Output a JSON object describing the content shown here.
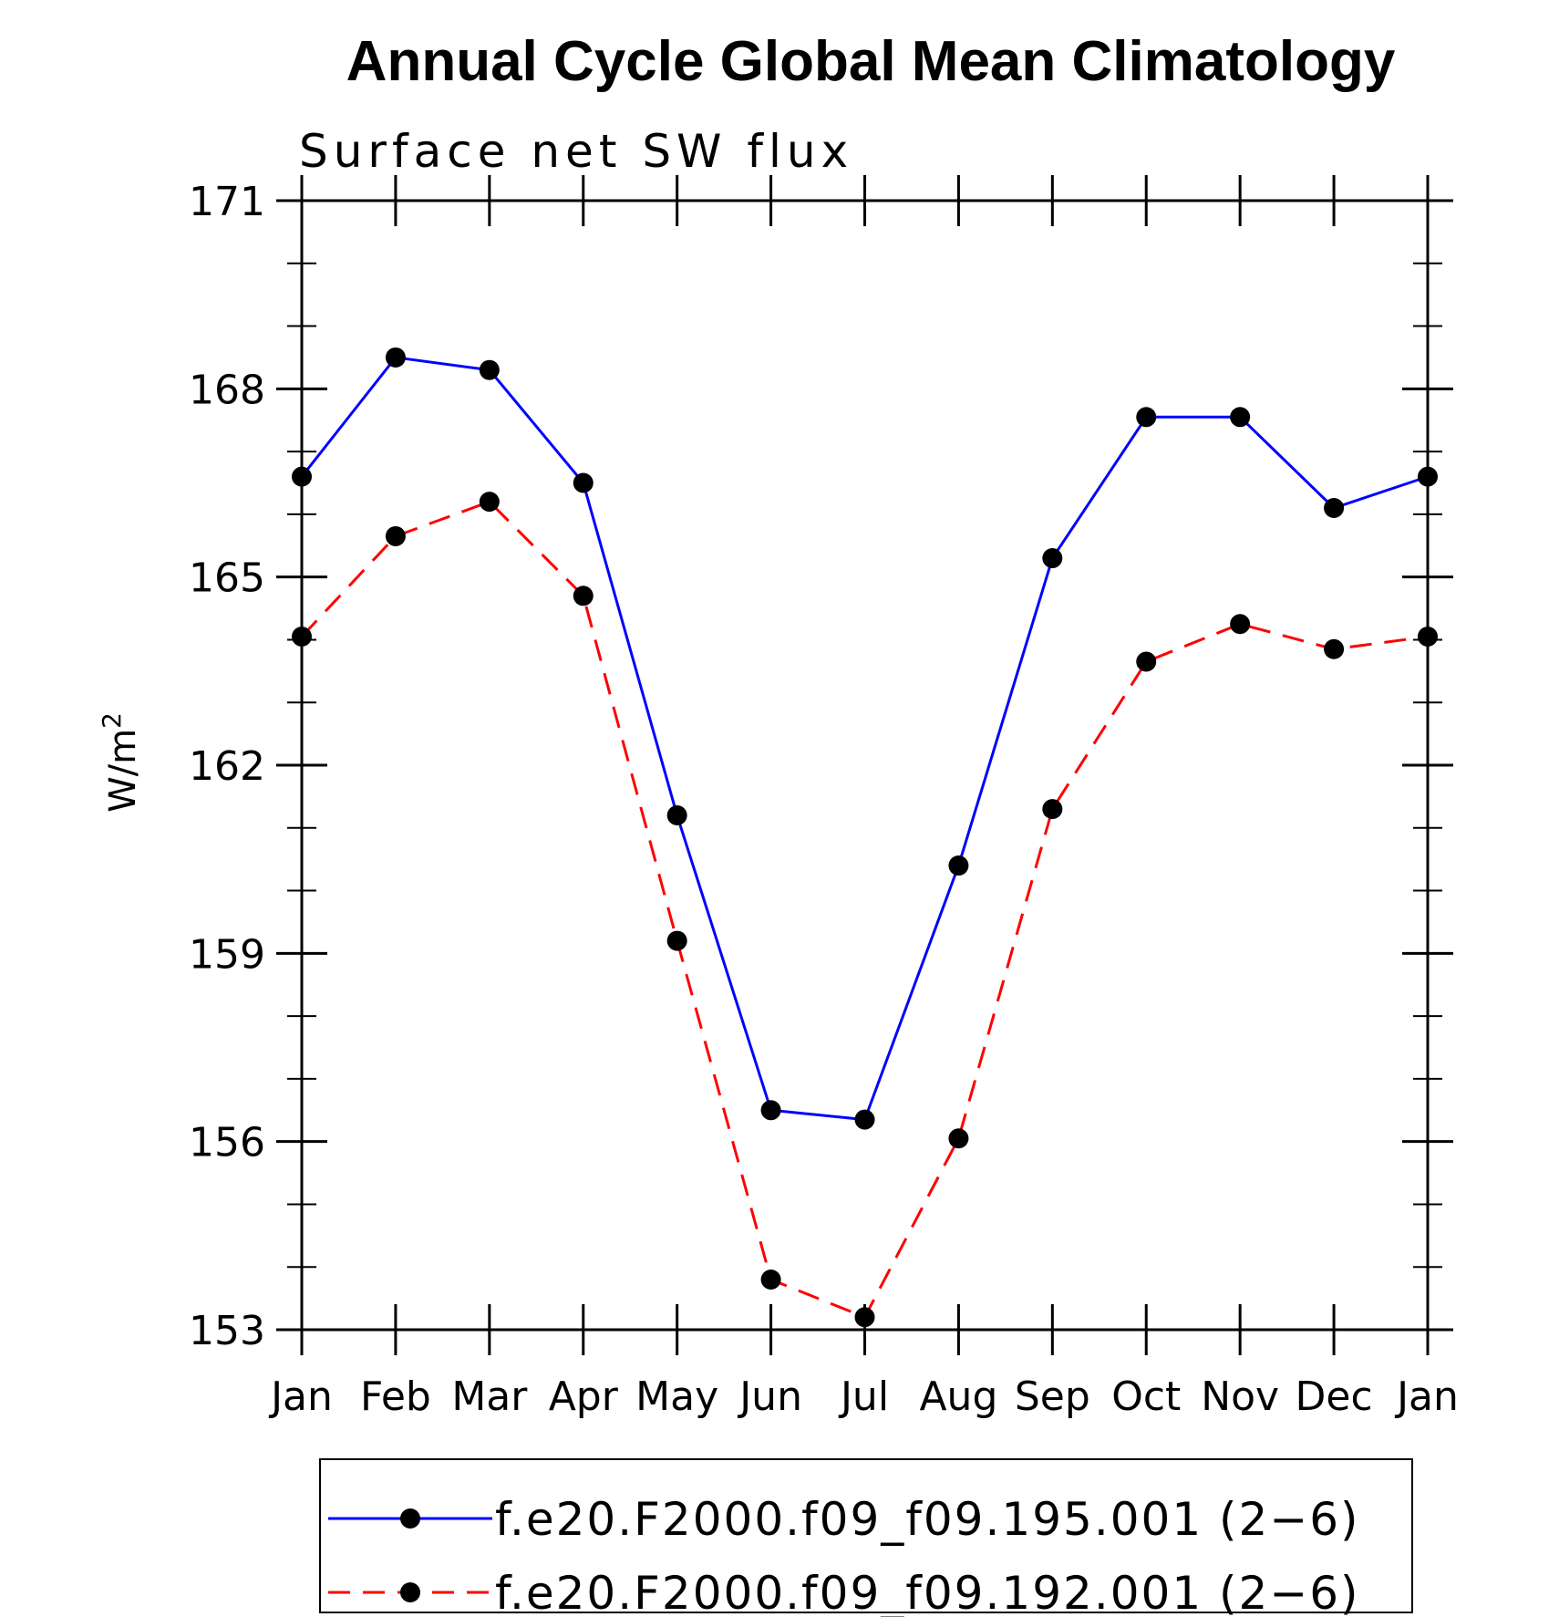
{
  "chart_data": {
    "type": "line",
    "title": "Annual Cycle Global Mean Climatology",
    "subtitle": "Surface net SW flux",
    "ylabel": "W/m",
    "ylabel_sup": "2",
    "xlabel": "",
    "categories": [
      "Jan",
      "Feb",
      "Mar",
      "Apr",
      "May",
      "Jun",
      "Jul",
      "Aug",
      "Sep",
      "Oct",
      "Nov",
      "Dec",
      "Jan"
    ],
    "ylim": [
      153,
      171
    ],
    "yticks": [
      153,
      156,
      159,
      162,
      165,
      168,
      171
    ],
    "grid": false,
    "legend_position": "bottom",
    "series": [
      {
        "name": "f.e20.F2000.f09_f09.195.001 (2−6)",
        "color": "#0000ff",
        "dash": "solid",
        "values": [
          166.6,
          168.5,
          168.3,
          166.5,
          161.2,
          156.5,
          156.35,
          160.4,
          165.3,
          167.55,
          167.55,
          166.1,
          166.6
        ]
      },
      {
        "name": "f.e20.F2000.f09_f09.192.001 (2−6)",
        "color": "#ff0000",
        "dash": "dashed",
        "values": [
          164.05,
          165.65,
          166.2,
          164.7,
          159.2,
          153.8,
          153.2,
          156.05,
          161.3,
          163.65,
          164.25,
          163.85,
          164.05
        ]
      }
    ]
  }
}
